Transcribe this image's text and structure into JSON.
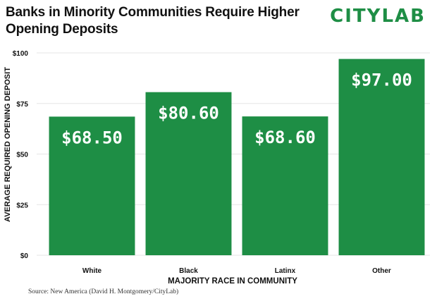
{
  "header": {
    "title": "Banks in Minority Communities Require Higher Opening Deposits",
    "logo": "CITYLAB"
  },
  "source": "Source: New America (David H. Montgomery/CityLab)",
  "colors": {
    "bar": "#1e8e45",
    "grid": "#e6e6e6",
    "text": "#111111"
  },
  "chart_data": {
    "type": "bar",
    "title": "Banks in Minority Communities Require Higher Opening Deposits",
    "xlabel": "MAJORITY RACE IN COMMUNITY",
    "ylabel": "AVERAGE REQUIRED OPENING DEPOSIT",
    "categories": [
      "White",
      "Black",
      "Latinx",
      "Other"
    ],
    "values": [
      68.5,
      80.6,
      68.6,
      97.0
    ],
    "value_labels": [
      "$68.50",
      "$80.60",
      "$68.60",
      "$97.00"
    ],
    "ylim": [
      0,
      100
    ],
    "yticks": [
      0,
      25,
      50,
      75,
      100
    ],
    "ytick_labels": [
      "$0",
      "$25",
      "$50",
      "$75",
      "$100"
    ],
    "grid": true,
    "legend": "none"
  }
}
